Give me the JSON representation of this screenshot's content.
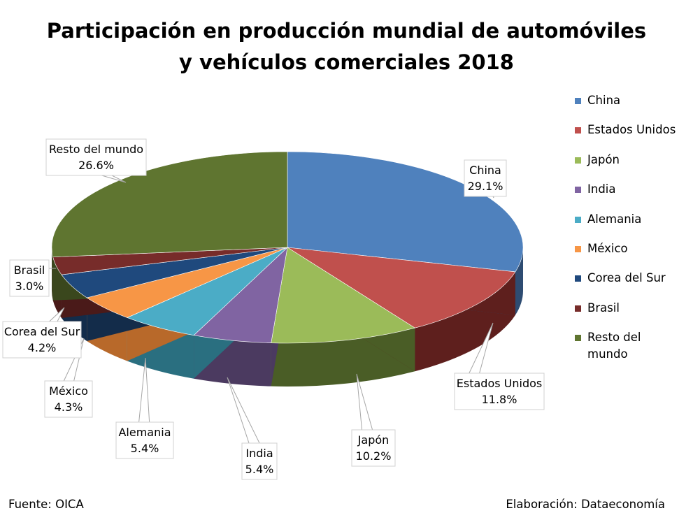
{
  "chart_data": {
    "type": "pie",
    "title": "Participación en producción mundial de automóviles y vehículos comerciales 2018",
    "title_lines": [
      "Participación en producción mundial de automóviles",
      "y vehículos comerciales 2018"
    ],
    "legend_position": "right",
    "slices": [
      {
        "label": "China",
        "value": 29.1,
        "value_label": "29.1%",
        "color": "#4F81BD",
        "side_color": "#2E4C72"
      },
      {
        "label": "Estados Unidos",
        "value": 11.8,
        "value_label": "11.8%",
        "color": "#C0504D",
        "side_color": "#5E1F1D"
      },
      {
        "label": "Japón",
        "value": 10.2,
        "value_label": "10.2%",
        "color": "#9BBB59",
        "side_color": "#4A5D26"
      },
      {
        "label": "India",
        "value": 5.4,
        "value_label": "5.4%",
        "color": "#8064A2",
        "side_color": "#4B3A60"
      },
      {
        "label": "Alemania",
        "value": 5.4,
        "value_label": "5.4%",
        "color": "#4BACC6",
        "side_color": "#2A6F80"
      },
      {
        "label": "México",
        "value": 4.3,
        "value_label": "4.3%",
        "color": "#F79646",
        "side_color": "#B8692A"
      },
      {
        "label": "Corea del Sur",
        "value": 4.2,
        "value_label": "4.2%",
        "color": "#1F497D",
        "side_color": "#132C4A"
      },
      {
        "label": "Brasil",
        "value": 3.0,
        "value_label": "3.0%",
        "color": "#772C2A",
        "side_color": "#4A1A19"
      },
      {
        "label": "Resto del mundo",
        "value": 26.6,
        "value_label": "26.6%",
        "color": "#5F7530",
        "side_color": "#3A471D"
      }
    ],
    "legend_entries": [
      "China",
      "Estados Unidos",
      "Japón",
      "India",
      "Alemania",
      "México",
      "Corea del Sur",
      "Brasil",
      "Resto del mundo"
    ]
  },
  "footer": {
    "source": "Fuente: OICA",
    "credit": "Elaboración: Dataeconomía"
  }
}
